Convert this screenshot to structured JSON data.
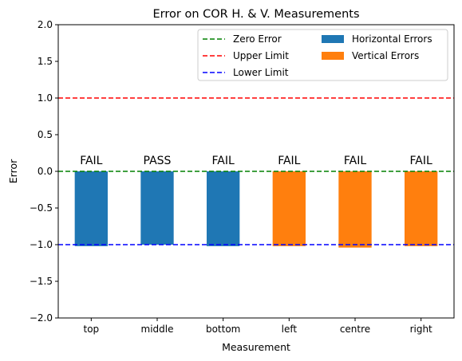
{
  "chart_data": {
    "type": "bar",
    "title": "Error on COR H. & V. Measurements",
    "xlabel": "Measurement",
    "ylabel": "Error",
    "ylim": [
      -2.0,
      2.0
    ],
    "yticks": [
      -2.0,
      -1.5,
      -1.0,
      -0.5,
      0.0,
      0.5,
      1.0,
      1.5,
      2.0
    ],
    "ytick_labels": [
      "−2.0",
      "−1.5",
      "−1.0",
      "−0.5",
      "0.0",
      "0.5",
      "1.0",
      "1.5",
      "2.0"
    ],
    "categories": [
      "top",
      "middle",
      "bottom",
      "left",
      "centre",
      "right"
    ],
    "series": [
      {
        "name": "Horizontal Errors",
        "color": "#1f77b4",
        "values": [
          -1.02,
          -1.0,
          -1.02,
          null,
          null,
          null
        ]
      },
      {
        "name": "Vertical Errors",
        "color": "#ff7f0e",
        "values": [
          null,
          null,
          null,
          -1.02,
          -1.04,
          -1.02
        ]
      }
    ],
    "bar_labels": [
      "FAIL",
      "PASS",
      "FAIL",
      "FAIL",
      "FAIL",
      "FAIL"
    ],
    "reference_lines": [
      {
        "name": "Zero Error",
        "value": 0.0,
        "color": "#008000",
        "style": "dashed"
      },
      {
        "name": "Upper Limit",
        "value": 1.0,
        "color": "#ff0000",
        "style": "dashed"
      },
      {
        "name": "Lower Limit",
        "value": -1.0,
        "color": "#0000ff",
        "style": "dashed"
      }
    ],
    "legend": {
      "placement": "top-right",
      "columns": [
        [
          "Zero Error",
          "Upper Limit",
          "Lower Limit"
        ],
        [
          "Horizontal Errors",
          "Vertical Errors"
        ]
      ]
    },
    "grid": false
  }
}
